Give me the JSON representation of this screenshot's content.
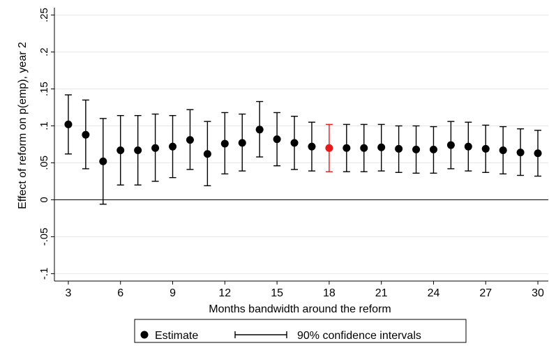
{
  "chart_data": {
    "type": "scatter",
    "xlabel": "Months bandwidth around the reform",
    "ylabel": "Effect of reform on p(emp), year 2",
    "xlim": [
      2.2,
      30.6
    ],
    "ylim": [
      -0.11,
      0.26
    ],
    "xticks": [
      3,
      6,
      9,
      12,
      15,
      18,
      21,
      24,
      27,
      30
    ],
    "yticks": [
      -0.1,
      -0.05,
      0,
      0.05,
      0.1,
      0.15,
      0.2,
      0.25
    ],
    "ytick_labels": [
      "-.1",
      "-.05",
      "0",
      ".05",
      ".1",
      ".15",
      ".2",
      ".25"
    ],
    "grid": true,
    "reference_line_y": 0,
    "highlight_x": 18,
    "colors": {
      "default": "#000000",
      "highlight": "#e8191a",
      "grid": "#e6e6e6"
    },
    "legend": {
      "position": "bottom-center",
      "estimate_label": "Estimate",
      "ci_label": "90% confidence intervals"
    },
    "series": [
      {
        "name": "Estimate",
        "x": [
          3,
          4,
          5,
          6,
          7,
          8,
          9,
          10,
          11,
          12,
          13,
          14,
          15,
          16,
          17,
          18,
          19,
          20,
          21,
          22,
          23,
          24,
          25,
          26,
          27,
          28,
          29,
          30
        ],
        "values": [
          0.102,
          0.088,
          0.052,
          0.067,
          0.067,
          0.07,
          0.072,
          0.081,
          0.062,
          0.076,
          0.077,
          0.095,
          0.082,
          0.077,
          0.072,
          0.07,
          0.07,
          0.07,
          0.071,
          0.069,
          0.068,
          0.068,
          0.074,
          0.072,
          0.069,
          0.067,
          0.064,
          0.063
        ]
      },
      {
        "name": "90% confidence intervals",
        "x": [
          3,
          4,
          5,
          6,
          7,
          8,
          9,
          10,
          11,
          12,
          13,
          14,
          15,
          16,
          17,
          18,
          19,
          20,
          21,
          22,
          23,
          24,
          25,
          26,
          27,
          28,
          29,
          30
        ],
        "lower": [
          0.062,
          0.042,
          -0.006,
          0.02,
          0.02,
          0.025,
          0.03,
          0.041,
          0.019,
          0.035,
          0.039,
          0.058,
          0.046,
          0.041,
          0.039,
          0.038,
          0.038,
          0.038,
          0.039,
          0.037,
          0.036,
          0.036,
          0.042,
          0.039,
          0.037,
          0.035,
          0.033,
          0.032
        ],
        "upper": [
          0.142,
          0.135,
          0.11,
          0.114,
          0.114,
          0.116,
          0.114,
          0.122,
          0.106,
          0.118,
          0.116,
          0.133,
          0.118,
          0.113,
          0.105,
          0.102,
          0.102,
          0.102,
          0.102,
          0.1,
          0.1,
          0.099,
          0.106,
          0.105,
          0.101,
          0.099,
          0.096,
          0.094
        ]
      }
    ]
  }
}
